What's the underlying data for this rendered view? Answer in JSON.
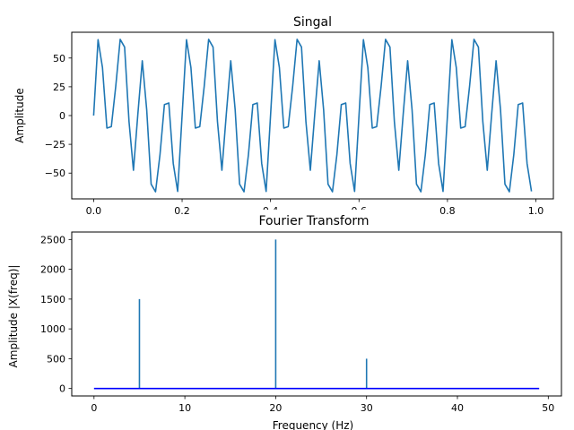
{
  "colors": {
    "signal_line": "#1f77b4",
    "stem": "#1f77b4",
    "baseline": "#0000ff",
    "axes": "#000000",
    "background": "#ffffff"
  },
  "chart_data": [
    {
      "type": "line",
      "title": "Singal",
      "xlabel": "",
      "ylabel": "Amplitude",
      "xlim": [
        -0.0495,
        1.0395
      ],
      "ylim": [
        -72.4,
        72.4
      ],
      "xticks": [
        0.0,
        0.2,
        0.4,
        0.6,
        0.8,
        1.0
      ],
      "xtick_labels": [
        "0.0",
        "0.2",
        "0.4",
        "0.6",
        "0.8",
        "1.0"
      ],
      "yticks": [
        -50,
        -25,
        0,
        25,
        50
      ],
      "ytick_labels": [
        "−50",
        "−25",
        "0",
        "25",
        "50"
      ],
      "grid": false,
      "x_sampling": {
        "start": 0,
        "step": 0.01,
        "count": 100
      },
      "y": [
        0.0,
        65.9,
        41.6,
        -10.9,
        -9.6,
        25.4,
        66.2,
        59.5,
        -5.3,
        -47.5,
        1.4,
        47.6,
        5.0,
        -59.6,
        -66.2,
        -34.0,
        9.5,
        10.9,
        -41.6,
        -65.9,
        0.0,
        65.9,
        41.6,
        -10.9,
        -9.6,
        25.4,
        66.2,
        59.5,
        -5.3,
        -47.5,
        1.4,
        47.6,
        5.0,
        -59.6,
        -66.2,
        -34.0,
        9.5,
        10.9,
        -41.6,
        -65.9,
        0.0,
        65.9,
        41.6,
        -10.9,
        -9.6,
        25.4,
        66.2,
        59.5,
        -5.3,
        -47.5,
        1.4,
        47.6,
        5.0,
        -59.6,
        -66.2,
        -34.0,
        9.5,
        10.9,
        -41.6,
        -65.9,
        0.0,
        65.9,
        41.6,
        -10.9,
        -9.6,
        25.4,
        66.2,
        59.5,
        -5.3,
        -47.5,
        1.4,
        47.6,
        5.0,
        -59.6,
        -66.2,
        -34.0,
        9.5,
        10.9,
        -41.6,
        -65.9,
        0.0,
        65.9,
        41.6,
        -10.9,
        -9.6,
        25.4,
        66.2,
        59.5,
        -5.3,
        -47.5,
        1.4,
        47.6,
        5.0,
        -59.6,
        -66.2,
        -34.0,
        9.5,
        10.9,
        -41.6,
        -65.9
      ]
    },
    {
      "type": "stem",
      "title": "Fourier Transform",
      "xlabel": "Frequency (Hz)",
      "ylabel": "Amplitude |X(freq)|",
      "xlim": [
        -2.45,
        51.45
      ],
      "ylim": [
        -125,
        2625
      ],
      "xticks": [
        0,
        10,
        20,
        30,
        40,
        50
      ],
      "xtick_labels": [
        "0",
        "10",
        "20",
        "30",
        "40",
        "50"
      ],
      "yticks": [
        0,
        500,
        1000,
        1500,
        2000,
        2500
      ],
      "ytick_labels": [
        "0",
        "500",
        "1000",
        "1500",
        "2000",
        "2500"
      ],
      "grid": false,
      "baseline_range": [
        0,
        49
      ],
      "x": [
        5,
        20,
        30
      ],
      "values": [
        1500,
        2500,
        500
      ]
    }
  ]
}
